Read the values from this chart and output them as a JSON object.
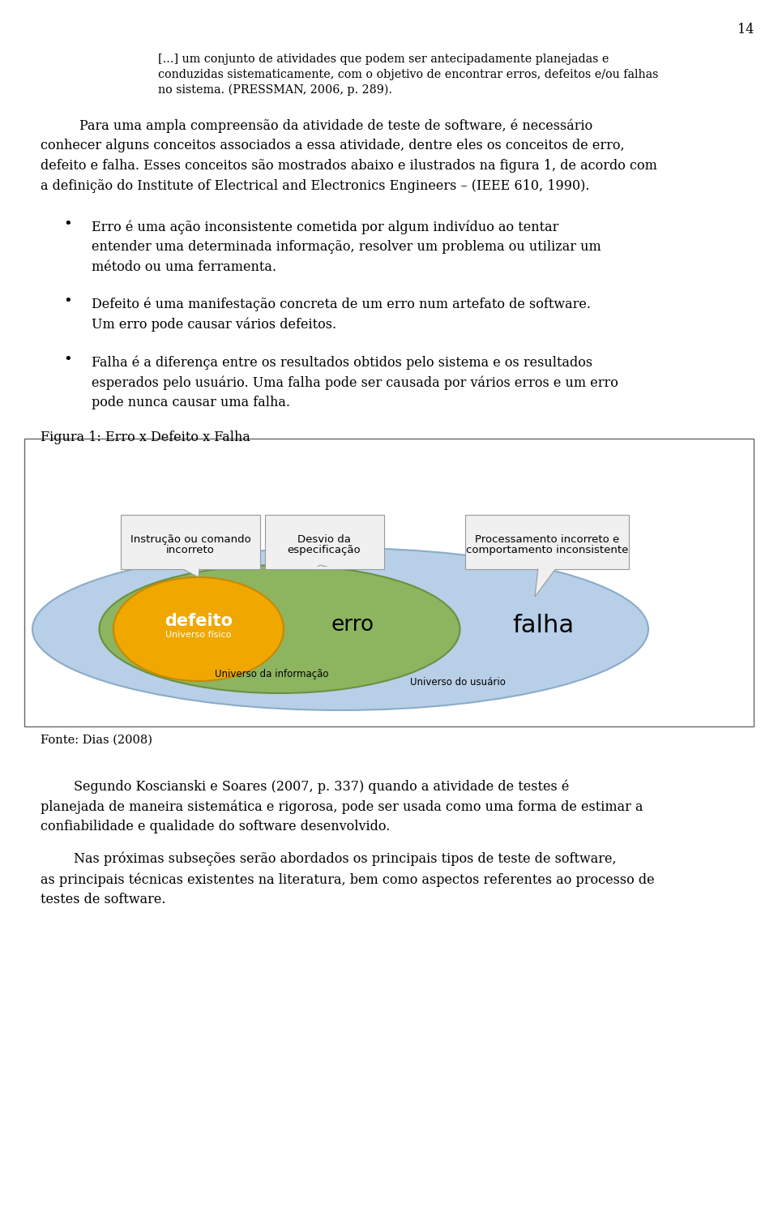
{
  "page_number": "14",
  "bg_color": "#ffffff",
  "p1_lines": [
    "[...] um conjunto de atividades que podem ser antecipadamente planejadas e",
    "conduzidas sistematicamente, com o objetivo de encontrar erros, defeitos e/ou falhas",
    "no sistema. (PRESSMAN, 2006, p. 289)."
  ],
  "p2_lines": [
    "Para uma ampla compreensão da atividade de teste de software, é necessário",
    "conhecer alguns conceitos associados a essa atividade, dentre eles os conceitos de erro,",
    "defeito e falha. Esses conceitos são mostrados abaixo e ilustrados na figura 1, de acordo com",
    "a definição do Institute of Electrical and Electronics Engineers – (IEEE 610, 1990)."
  ],
  "b1_lines": [
    "Erro é uma ação inconsistente cometida por algum indivíduo ao tentar",
    "entender uma determinada informação, resolver um problema ou utilizar um",
    "método ou uma ferramenta."
  ],
  "b2_lines": [
    "Defeito é uma manifestação concreta de um erro num artefato de software.",
    "Um erro pode causar vários defeitos."
  ],
  "b3_lines": [
    "Falha é a diferença entre os resultados obtidos pelo sistema e os resultados",
    "esperados pelo usuário. Uma falha pode ser causada por vários erros e um erro",
    "pode nunca causar uma falha."
  ],
  "figure_caption": "Figura 1: Erro x Defeito x Falha",
  "fonte": "Fonte: Dias (2008)",
  "p3_lines": [
    "        Segundo Koscianski e Soares (2007, p. 337) quando a atividade de testes é",
    "planejada de maneira sistemática e rigorosa, pode ser usada como uma forma de estimar a",
    "confiabilidade e qualidade do software desenvolvido."
  ],
  "p4_lines": [
    "        Nas próximas subseções serão abordados os principais tipos de teste de software,",
    "as principais técnicas existentes na literatura, bem como aspectos referentes ao processo de",
    "testes de software."
  ],
  "ellipse_outer_color": "#b8cfe8",
  "ellipse_outer_edge": "#8aacc8",
  "ellipse_middle_color": "#8db560",
  "ellipse_middle_edge": "#6a9040",
  "ellipse_inner_color": "#f0a800",
  "ellipse_inner_edge": "#c88800",
  "callout_bg": "#f0f0f0",
  "callout_border": "#999999"
}
